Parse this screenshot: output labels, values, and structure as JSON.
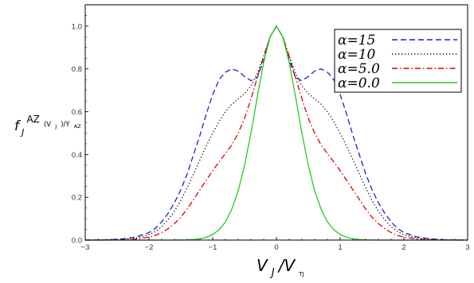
{
  "chart_data": {
    "type": "line",
    "xlim": [
      -3,
      3
    ],
    "ylim": [
      0,
      1.1
    ],
    "x_ticks": [
      "−3",
      "−2",
      "−1",
      "0",
      "1",
      "2",
      "3"
    ],
    "y_ticks": [
      "0.0",
      "0.2",
      "0.4",
      "0.6",
      "0.8",
      "1.0"
    ],
    "x_tick_values": [
      -3,
      -2,
      -1,
      0,
      1,
      2,
      3
    ],
    "y_tick_values": [
      0.0,
      0.2,
      0.4,
      0.6,
      0.8,
      1.0
    ],
    "xlabel": {
      "main": "V",
      "sub1": "J",
      "sep": "/V",
      "sub2": "TJ"
    },
    "ylabel": {
      "main": "f",
      "sub": "J",
      "sup": "AZ",
      "arg": "(V",
      "arg_sub": "J",
      "arg_close": ")/Y",
      "arg_sub2": "AZ"
    },
    "legend_position": "top-right",
    "grid": false,
    "x": [
      0.0,
      0.1,
      0.2,
      0.3,
      0.4,
      0.5,
      0.6,
      0.7,
      0.8,
      0.9,
      1.0,
      1.1,
      1.2,
      1.3,
      1.4,
      1.5,
      1.6,
      1.7,
      1.8,
      1.9,
      2.0,
      2.2,
      2.4,
      2.6,
      2.8,
      3.0
    ],
    "series": [
      {
        "name": "α=15",
        "color": "#1f1fd0",
        "dash": "7,4",
        "values": [
          1.0,
          0.95,
          0.84,
          0.76,
          0.745,
          0.765,
          0.79,
          0.8,
          0.785,
          0.75,
          0.68,
          0.59,
          0.49,
          0.4,
          0.31,
          0.235,
          0.175,
          0.125,
          0.085,
          0.055,
          0.035,
          0.015,
          0.006,
          0.002,
          0.0005,
          0.0
        ]
      },
      {
        "name": "α=10",
        "color": "#000000",
        "dash": "1.2,2.8",
        "values": [
          1.0,
          0.95,
          0.86,
          0.78,
          0.72,
          0.685,
          0.66,
          0.635,
          0.6,
          0.555,
          0.5,
          0.44,
          0.375,
          0.31,
          0.245,
          0.185,
          0.135,
          0.095,
          0.062,
          0.04,
          0.025,
          0.01,
          0.004,
          0.001,
          0.0003,
          0.0
        ]
      },
      {
        "name": "α=5.0",
        "color": "#dd0000",
        "dash": "7,3,1.5,3",
        "values": [
          1.0,
          0.95,
          0.86,
          0.76,
          0.66,
          0.57,
          0.5,
          0.445,
          0.405,
          0.365,
          0.325,
          0.28,
          0.235,
          0.19,
          0.145,
          0.107,
          0.077,
          0.053,
          0.035,
          0.022,
          0.014,
          0.005,
          0.002,
          0.0005,
          0.0001,
          0.0
        ]
      },
      {
        "name": "α=0.0",
        "color": "#22cc22",
        "dash": "",
        "values": [
          1.0,
          0.95,
          0.83,
          0.67,
          0.5,
          0.35,
          0.23,
          0.145,
          0.085,
          0.048,
          0.026,
          0.013,
          0.006,
          0.0025,
          0.001,
          0.0003,
          0.0001,
          0.0,
          0.0,
          0.0,
          0.0,
          0.0,
          0.0,
          0.0,
          0.0,
          0.0
        ]
      }
    ]
  }
}
